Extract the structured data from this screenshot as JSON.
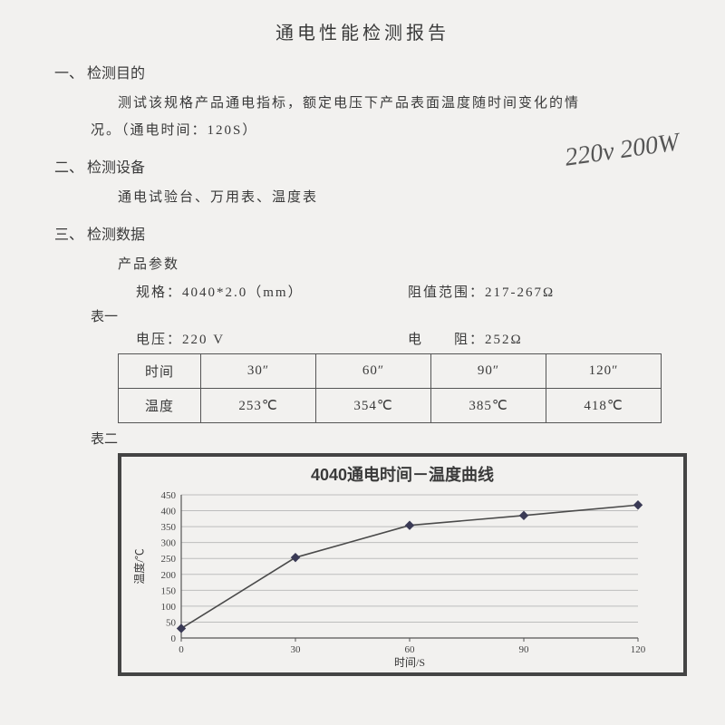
{
  "title": "通电性能检测报告",
  "section1": {
    "num": "一、",
    "head": "检测目的",
    "line1": "测试该规格产品通电指标，额定电压下产品表面温度随时间变化的情",
    "line2": "况。（通电时间：120S）"
  },
  "section2": {
    "num": "二、",
    "head": "检测设备",
    "body": "通电试验台、万用表、温度表"
  },
  "section3": {
    "num": "三、",
    "head": "检测数据",
    "sub": "产品参数"
  },
  "params": {
    "spec": "规格：4040*2.0（mm）",
    "range": "阻值范围：217-267Ω",
    "voltage": "电压：220 V",
    "resistance": "电　　阻：252Ω"
  },
  "table1_label": "表一",
  "table2_label": "表二",
  "data_table": {
    "row_heads": [
      "时间",
      "温度"
    ],
    "cols": [
      [
        "30″",
        "253℃"
      ],
      [
        "60″",
        "354℃"
      ],
      [
        "90″",
        "385℃"
      ],
      [
        "120″",
        "418℃"
      ]
    ]
  },
  "handwriting": "220v 200W",
  "chart": {
    "title": "4040通电时间－温度曲线",
    "type": "line",
    "xlabel": "时间/S",
    "ylabel": "温度/℃",
    "xlim": [
      0,
      120
    ],
    "ylim": [
      0,
      450
    ],
    "xtick_step": 30,
    "ytick_step": 50,
    "x": [
      0,
      30,
      60,
      90,
      120
    ],
    "y": [
      30,
      253,
      354,
      385,
      418
    ],
    "line_color": "#4a4a4a",
    "marker_color": "#3a3a55",
    "marker": "diamond",
    "background_color": "#f2f1ef",
    "grid_color": "#bdbdbd",
    "label_fontsize": 12,
    "tick_fontsize": 11,
    "title_fontsize": 18
  }
}
